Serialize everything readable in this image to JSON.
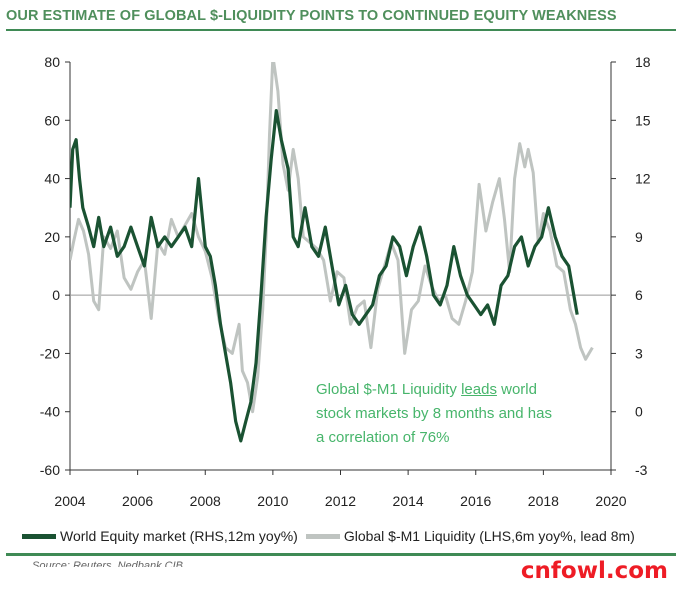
{
  "header": {
    "title": "OUR ESTIMATE OF GLOBAL $-LIQUIDITY POINTS TO CONTINUED EQUITY WEAKNESS"
  },
  "annotation": {
    "line1_a": "Global $-M1 Liquidity ",
    "line1_b": "leads",
    "line1_c": " world",
    "line2": "stock markets by 8 months and has",
    "line3": "a correlation of 76%"
  },
  "legend": {
    "equity": "World Equity market (RHS,12m yoy%)",
    "liquidity": "Global $-M1 Liquidity (LHS,6m yoy%, lead 8m)"
  },
  "source": "Source: Reuters, Nedbank CIB",
  "watermark": "cnfowl.com",
  "colors": {
    "equity": "#1a5232",
    "liquidity": "#bfc4c1",
    "title": "#4f8f5c",
    "accent": "#47b56b"
  },
  "chart_data": {
    "type": "line",
    "x_ticks": [
      "2004",
      "2006",
      "2008",
      "2010",
      "2012",
      "2014",
      "2016",
      "2018",
      "2020"
    ],
    "xlim": [
      2004,
      2020
    ],
    "left_axis": {
      "ticks": [
        "80",
        "60",
        "40",
        "20",
        "0",
        "-20",
        "-40",
        "-60"
      ],
      "ylim": [
        -60,
        80
      ]
    },
    "right_axis": {
      "ticks": [
        "18",
        "15",
        "12",
        "9",
        "6",
        "3",
        "0",
        "-3"
      ],
      "ylim": [
        -3,
        18
      ]
    },
    "series": [
      {
        "name": "Global $-M1 Liquidity (LHS,6m yoy%, lead 8m)",
        "axis": "left",
        "x": [
          2004.0,
          2004.1,
          2004.25,
          2004.4,
          2004.55,
          2004.7,
          2004.85,
          2005.0,
          2005.2,
          2005.4,
          2005.6,
          2005.8,
          2006.0,
          2006.2,
          2006.4,
          2006.6,
          2006.8,
          2007.0,
          2007.2,
          2007.4,
          2007.6,
          2007.8,
          2008.0,
          2008.2,
          2008.4,
          2008.6,
          2008.8,
          2009.0,
          2009.1,
          2009.25,
          2009.4,
          2009.55,
          2009.7,
          2009.8,
          2009.9,
          2010.0,
          2010.15,
          2010.3,
          2010.45,
          2010.6,
          2010.75,
          2010.9,
          2011.1,
          2011.3,
          2011.5,
          2011.7,
          2011.9,
          2012.1,
          2012.3,
          2012.5,
          2012.7,
          2012.9,
          2013.1,
          2013.3,
          2013.5,
          2013.7,
          2013.9,
          2014.1,
          2014.3,
          2014.5,
          2014.7,
          2014.9,
          2015.1,
          2015.3,
          2015.5,
          2015.7,
          2015.9,
          2016.1,
          2016.3,
          2016.5,
          2016.7,
          2016.85,
          2017.0,
          2017.15,
          2017.3,
          2017.45,
          2017.55,
          2017.7,
          2017.85,
          2018.0,
          2018.2,
          2018.4,
          2018.6,
          2018.8,
          2018.95,
          2019.1,
          2019.25,
          2019.35,
          2019.45
        ],
        "y": [
          12,
          18,
          26,
          22,
          14,
          -2,
          -5,
          20,
          16,
          22,
          6,
          2,
          8,
          12,
          -8,
          18,
          14,
          26,
          20,
          24,
          28,
          20,
          15,
          6,
          -8,
          -18,
          -20,
          -10,
          -26,
          -30,
          -40,
          -28,
          -5,
          20,
          55,
          82,
          70,
          45,
          36,
          50,
          40,
          20,
          18,
          16,
          12,
          -2,
          8,
          6,
          -10,
          -4,
          -2,
          -18,
          2,
          10,
          18,
          12,
          -20,
          -5,
          -2,
          10,
          3,
          -2,
          0,
          -8,
          -10,
          -2,
          8,
          38,
          22,
          32,
          40,
          26,
          8,
          40,
          52,
          44,
          50,
          42,
          18,
          28,
          22,
          10,
          8,
          -5,
          -10,
          -18,
          -22,
          -20,
          -18
        ]
      },
      {
        "name": "World Equity market (RHS,12m yoy%)",
        "axis": "right",
        "x": [
          2004.0,
          2004.08,
          2004.18,
          2004.28,
          2004.38,
          2004.55,
          2004.7,
          2004.85,
          2005.0,
          2005.2,
          2005.4,
          2005.6,
          2005.8,
          2006.0,
          2006.2,
          2006.4,
          2006.6,
          2006.8,
          2007.0,
          2007.2,
          2007.4,
          2007.6,
          2007.8,
          2008.0,
          2008.15,
          2008.3,
          2008.45,
          2008.6,
          2008.75,
          2008.9,
          2009.05,
          2009.2,
          2009.35,
          2009.5,
          2009.65,
          2009.8,
          2009.95,
          2010.1,
          2010.25,
          2010.45,
          2010.6,
          2010.75,
          2010.95,
          2011.15,
          2011.35,
          2011.55,
          2011.75,
          2011.95,
          2012.15,
          2012.35,
          2012.55,
          2012.75,
          2012.95,
          2013.15,
          2013.35,
          2013.55,
          2013.75,
          2013.95,
          2014.15,
          2014.35,
          2014.55,
          2014.75,
          2014.95,
          2015.15,
          2015.35,
          2015.55,
          2015.75,
          2015.95,
          2016.15,
          2016.35,
          2016.55,
          2016.75,
          2016.95,
          2017.15,
          2017.35,
          2017.55,
          2017.75,
          2017.95,
          2018.15,
          2018.35,
          2018.55,
          2018.75,
          2018.9,
          2019.0
        ],
        "y": [
          10.5,
          13.5,
          14,
          12,
          10.5,
          9.5,
          8.5,
          10,
          8.5,
          9.5,
          8,
          8.5,
          9.5,
          8.5,
          7.5,
          10,
          8.5,
          9,
          8.5,
          9,
          9.5,
          8.5,
          12,
          8.5,
          8,
          6.5,
          4.5,
          3,
          1.5,
          -0.5,
          -1.5,
          -0.5,
          0.5,
          2.5,
          6,
          10,
          13,
          15.5,
          14,
          12.5,
          9,
          8.5,
          10.5,
          8.5,
          8,
          9.5,
          7.5,
          5.5,
          6.5,
          5,
          4.5,
          5,
          5.5,
          7,
          7.5,
          9,
          8.5,
          7,
          8.5,
          9.5,
          8,
          6,
          5.5,
          6.5,
          8.5,
          7,
          6,
          5.5,
          5,
          5.5,
          4.5,
          6.5,
          7,
          8.5,
          9,
          7.5,
          8.5,
          9,
          10.5,
          9,
          8,
          7.5,
          6,
          5
        ]
      }
    ]
  }
}
